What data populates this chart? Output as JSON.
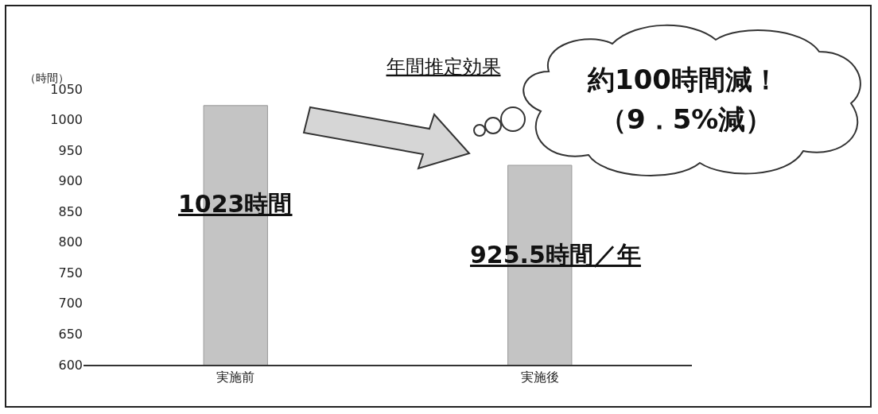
{
  "chart_data": {
    "type": "bar",
    "title": "年間推定効果",
    "ylabel": "（時間）",
    "categories": [
      "実施前",
      "実施後"
    ],
    "values": [
      1023,
      925.5
    ],
    "value_labels": [
      "1023時間",
      "925.5時間／年"
    ],
    "color": "#c4c4c4",
    "ylim": [
      600,
      1050
    ],
    "yticks": [
      600,
      650,
      700,
      750,
      800,
      850,
      900,
      950,
      1000,
      1050
    ],
    "grid": false,
    "annotations": [
      "約100時間減！",
      "（9．5%減）"
    ]
  }
}
